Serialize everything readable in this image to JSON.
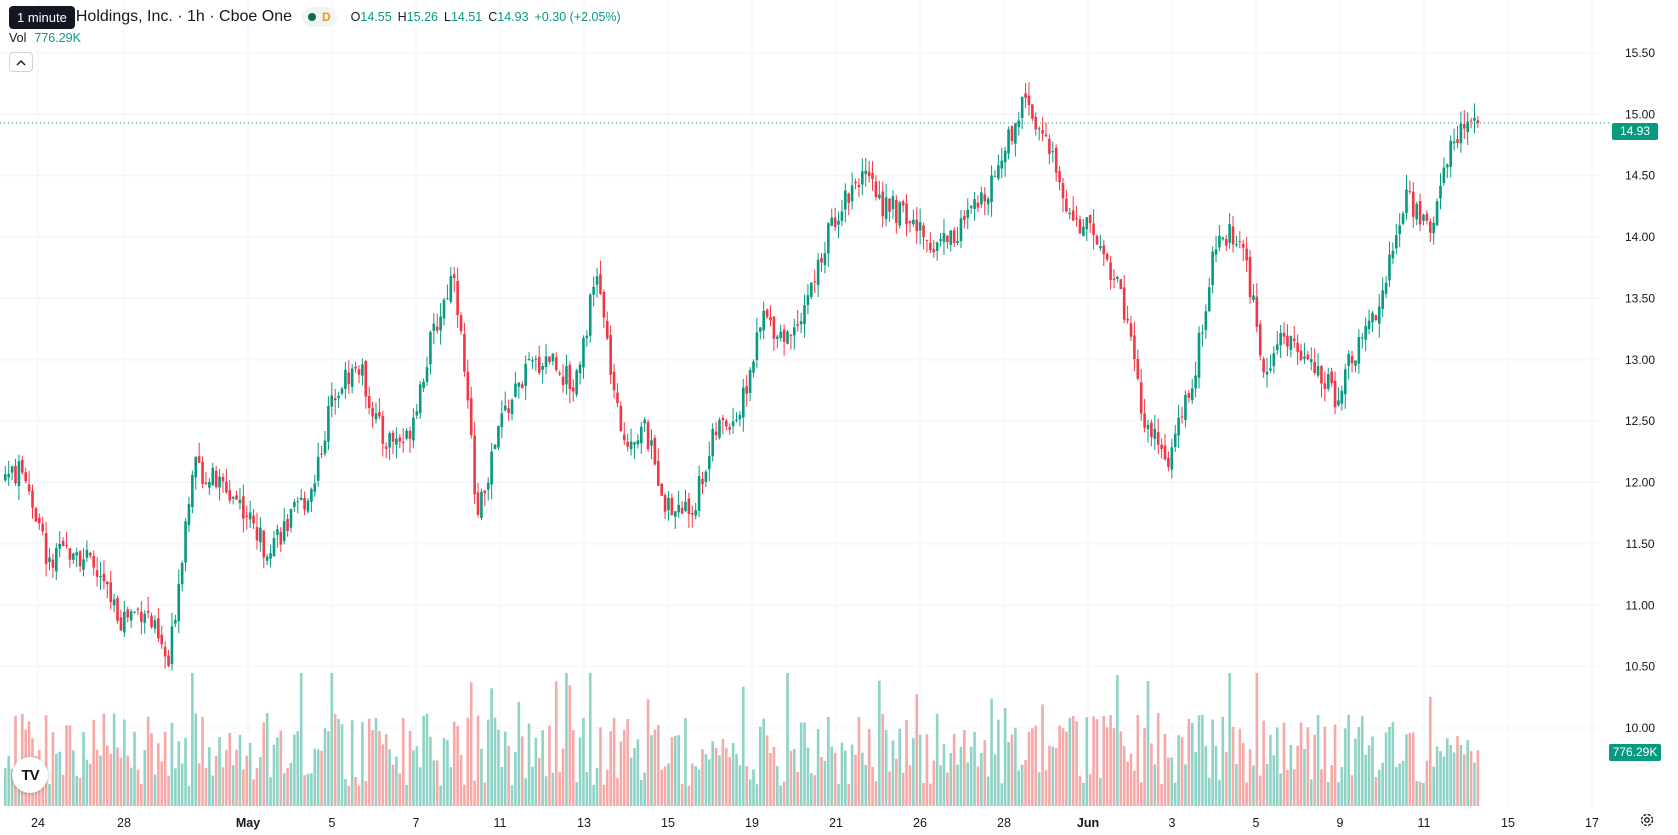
{
  "legend": {
    "tooltip": "1 minute",
    "symbol": "Holdings, Inc. · 1h · Cboe One",
    "status_badge": "D",
    "open_label": "O",
    "open": "14.55",
    "high_label": "H",
    "high": "15.26",
    "low_label": "L",
    "low": "14.51",
    "close_label": "C",
    "close": "14.93",
    "change": "+0.30 (+2.05%)"
  },
  "volume_legend": {
    "label": "Vol",
    "value": "776.29K"
  },
  "last_price_label": "14.93",
  "last_volume_label": "776.29K",
  "logo_text": "TV",
  "colors": {
    "up": "#089981",
    "down": "#f23645",
    "up_vol": "#8fd3c6",
    "down_vol": "#f7a9a7",
    "grid": "#f0f3fa"
  },
  "icons": {
    "collapse": "chevron-up-icon",
    "settings": "gear-icon",
    "status": "market-open-dot-icon"
  },
  "chart_data": {
    "type": "candlestick",
    "y_tick_labels": [
      "15.50",
      "15.00",
      "14.50",
      "14.00",
      "13.50",
      "13.00",
      "12.50",
      "12.00",
      "11.50",
      "11.00",
      "10.50",
      "10.00"
    ],
    "x_tick_labels": [
      "24",
      "28",
      "May",
      "5",
      "7",
      "11",
      "13",
      "15",
      "19",
      "21",
      "26",
      "28",
      "Jun",
      "3",
      "5",
      "9",
      "11",
      "15",
      "17"
    ],
    "ylim": [
      9.86,
      15.67
    ],
    "last_close": 14.93,
    "session_closes": [
      [
        "24",
        12.07
      ],
      [
        "25",
        11.31
      ],
      [
        "26",
        11.5
      ],
      [
        "27",
        11.25
      ],
      [
        "28",
        10.9
      ],
      [
        "29",
        10.98
      ],
      [
        "30",
        10.5
      ],
      [
        "May",
        12.15
      ],
      [
        "2",
        12.0
      ],
      [
        "3",
        11.85
      ],
      [
        "4",
        11.48
      ],
      [
        "5",
        11.65
      ],
      [
        "6",
        11.95
      ],
      [
        "7",
        12.78
      ],
      [
        "8",
        12.95
      ],
      [
        "9",
        12.35
      ],
      [
        "10",
        12.35
      ],
      [
        "11",
        13.12
      ],
      [
        "12",
        13.75
      ],
      [
        "13",
        11.72
      ],
      [
        "14",
        12.52
      ],
      [
        "15",
        12.9
      ],
      [
        "16",
        13.04
      ],
      [
        "17",
        12.78
      ],
      [
        "18",
        13.7
      ],
      [
        "19",
        12.35
      ],
      [
        "20",
        12.43
      ],
      [
        "21",
        11.78
      ],
      [
        "22",
        11.78
      ],
      [
        "23",
        12.42
      ],
      [
        "24",
        12.58
      ],
      [
        "25",
        13.35
      ],
      [
        "26",
        13.18
      ],
      [
        "27",
        13.58
      ],
      [
        "28",
        14.18
      ],
      [
        "29",
        14.51
      ],
      [
        "30",
        14.28
      ],
      [
        "31",
        14.15
      ],
      [
        "Jun",
        13.95
      ],
      [
        "2",
        14.02
      ],
      [
        "3",
        14.25
      ],
      [
        "4",
        14.65
      ],
      [
        "5",
        15.18
      ],
      [
        "6",
        14.67
      ],
      [
        "7",
        14.15
      ],
      [
        "8",
        13.98
      ],
      [
        "9",
        13.57
      ],
      [
        "10",
        12.47
      ],
      [
        "11",
        12.18
      ],
      [
        "12",
        12.78
      ],
      [
        "13",
        13.95
      ],
      [
        "14",
        14.05
      ],
      [
        "15",
        12.95
      ],
      [
        "16",
        13.2
      ],
      [
        "17",
        12.92
      ],
      [
        "18",
        12.72
      ],
      [
        "19",
        13.12
      ],
      [
        "20",
        13.55
      ],
      [
        "21",
        14.35
      ],
      [
        "22",
        14.05
      ],
      [
        "23",
        14.85
      ],
      [
        "24",
        14.93
      ]
    ],
    "volume_scale": "relative, last bar = 776.29K"
  }
}
